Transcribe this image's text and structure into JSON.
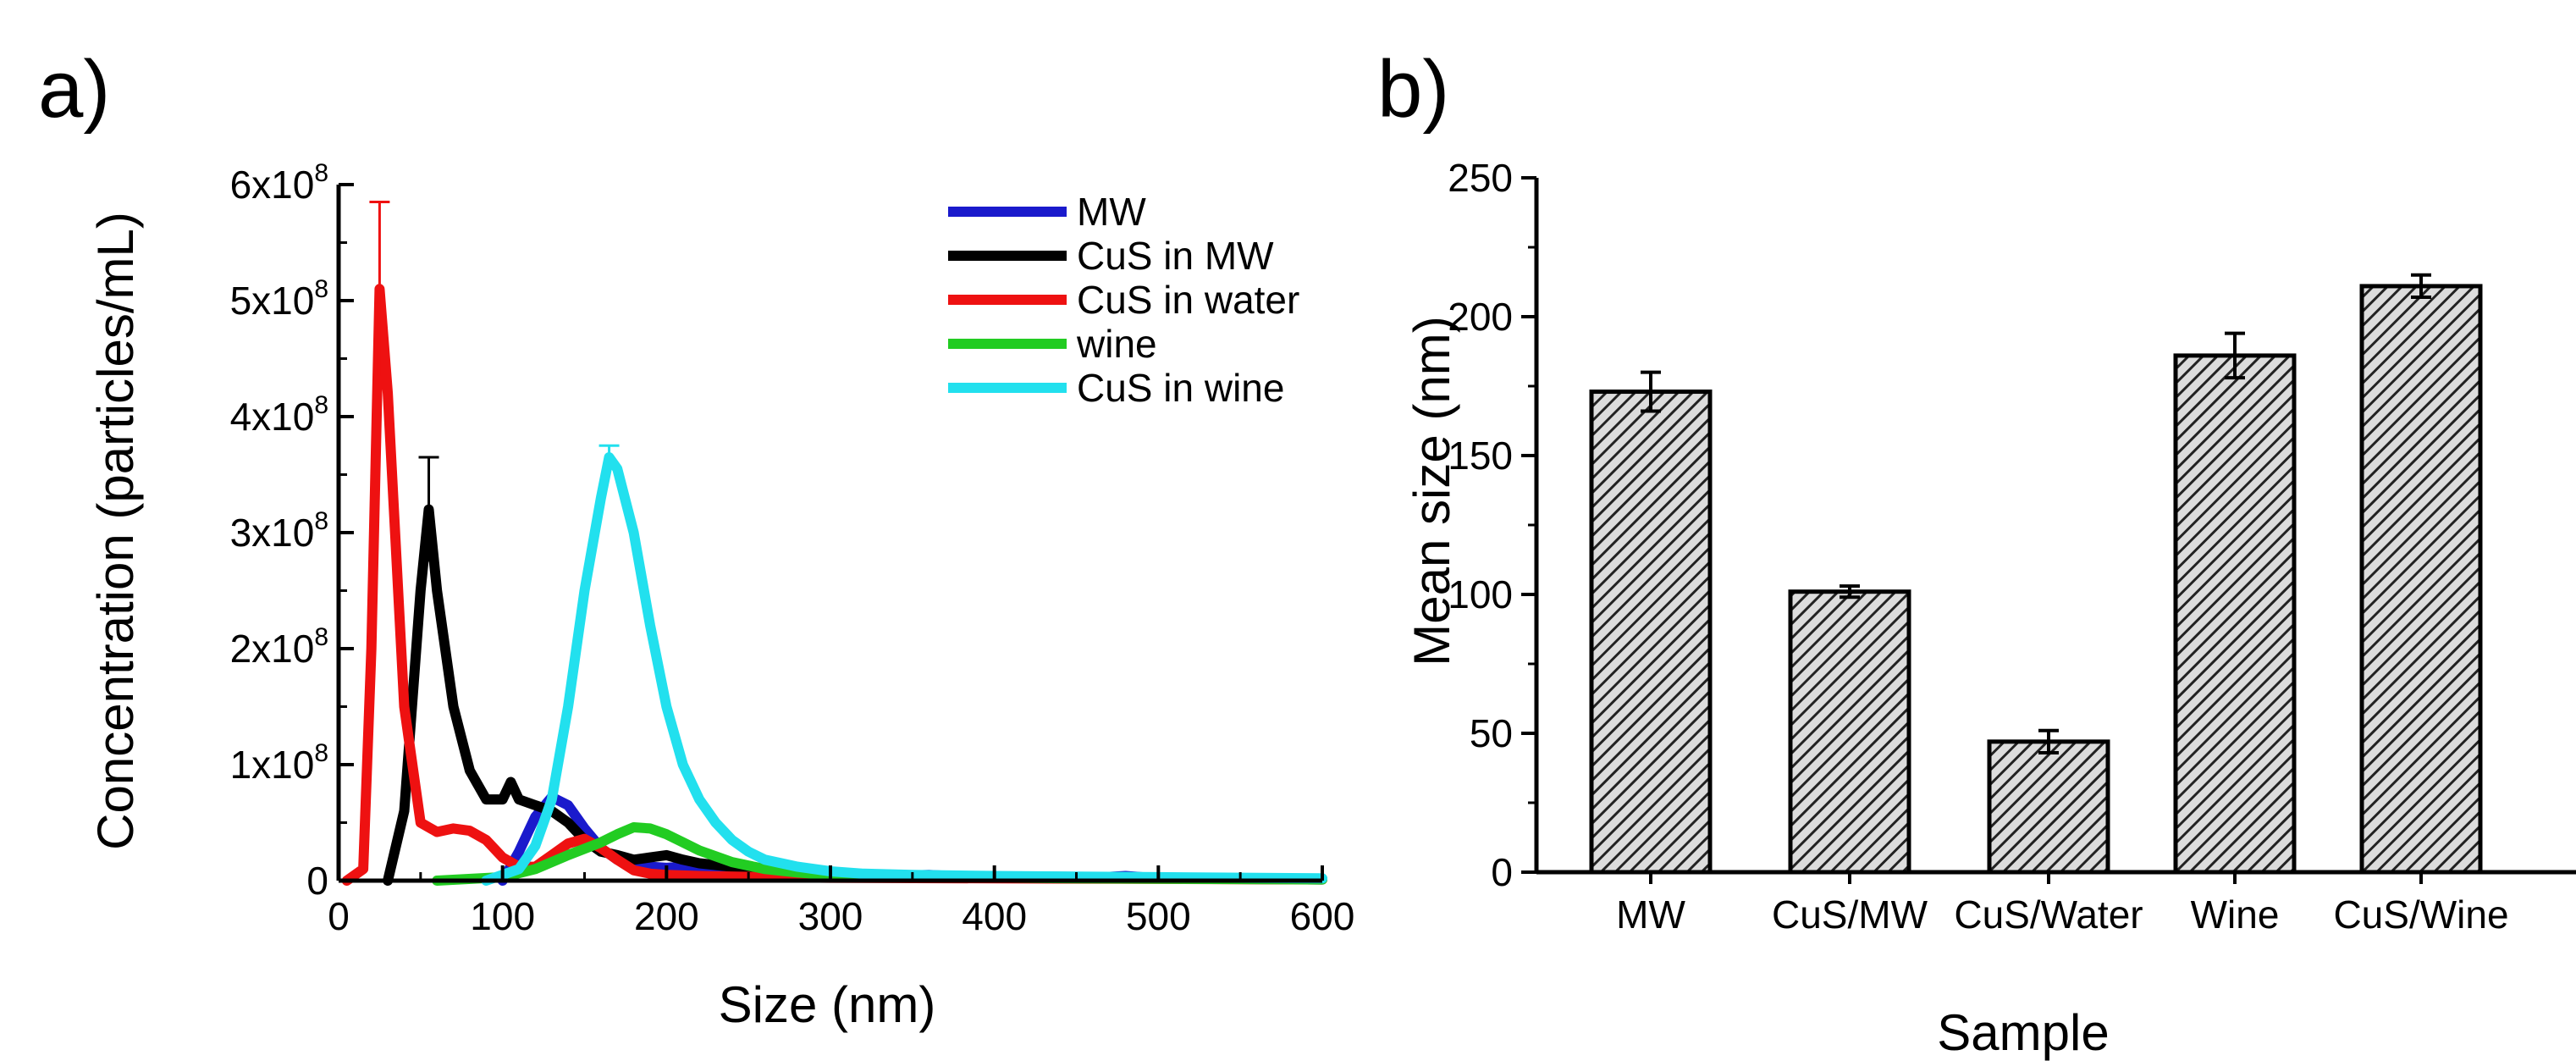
{
  "chart_data": [
    {
      "panel_label": "a)",
      "type": "line",
      "xlabel": "Size (nm)",
      "ylabel": "Concentration (particles/mL)",
      "xlim": [
        0,
        600
      ],
      "ylim": [
        0,
        600000000
      ],
      "x_ticks": [
        "0",
        "100",
        "200",
        "300",
        "400",
        "500",
        "600"
      ],
      "y_ticks": [
        {
          "value": 0,
          "base": "0",
          "exp": ""
        },
        {
          "value": 100000000,
          "base": "1x10",
          "exp": "8"
        },
        {
          "value": 200000000,
          "base": "2x10",
          "exp": "8"
        },
        {
          "value": 300000000,
          "base": "3x10",
          "exp": "8"
        },
        {
          "value": 400000000,
          "base": "4x10",
          "exp": "8"
        },
        {
          "value": 500000000,
          "base": "5x10",
          "exp": "8"
        },
        {
          "value": 600000000,
          "base": "6x10",
          "exp": "8"
        }
      ],
      "legend_position": "top-right",
      "grid": false,
      "series": [
        {
          "name": "MW",
          "color": "#1a1acc",
          "points": [
            [
              100,
              0
            ],
            [
              110,
              25000000
            ],
            [
              120,
              55000000
            ],
            [
              130,
              72000000
            ],
            [
              140,
              65000000
            ],
            [
              150,
              45000000
            ],
            [
              160,
              28000000
            ],
            [
              170,
              18000000
            ],
            [
              180,
              14000000
            ],
            [
              190,
              12000000
            ],
            [
              200,
              11000000
            ],
            [
              210,
              12000000
            ],
            [
              220,
              10000000
            ],
            [
              240,
              8000000
            ],
            [
              260,
              6000000
            ],
            [
              280,
              5000000
            ],
            [
              300,
              4000000
            ],
            [
              340,
              4000000
            ],
            [
              360,
              5000000
            ],
            [
              380,
              3500000
            ],
            [
              420,
              3000000
            ],
            [
              460,
              2500000
            ],
            [
              480,
              4000000
            ],
            [
              500,
              2000000
            ],
            [
              540,
              1500000
            ],
            [
              600,
              1000000
            ]
          ]
        },
        {
          "name": "CuS in MW",
          "color": "#000000",
          "points": [
            [
              30,
              0
            ],
            [
              40,
              60000000
            ],
            [
              50,
              250000000
            ],
            [
              55,
              320000000
            ],
            [
              60,
              250000000
            ],
            [
              70,
              150000000
            ],
            [
              80,
              95000000
            ],
            [
              90,
              70000000
            ],
            [
              100,
              70000000
            ],
            [
              105,
              85000000
            ],
            [
              110,
              70000000
            ],
            [
              120,
              65000000
            ],
            [
              130,
              60000000
            ],
            [
              140,
              50000000
            ],
            [
              150,
              35000000
            ],
            [
              160,
              25000000
            ],
            [
              170,
              22000000
            ],
            [
              180,
              18000000
            ],
            [
              190,
              20000000
            ],
            [
              200,
              22000000
            ],
            [
              210,
              18000000
            ],
            [
              220,
              15000000
            ],
            [
              240,
              12000000
            ],
            [
              260,
              9000000
            ],
            [
              280,
              7000000
            ],
            [
              300,
              6000000
            ],
            [
              340,
              5000000
            ],
            [
              380,
              4000000
            ],
            [
              420,
              3500000
            ],
            [
              480,
              3000000
            ],
            [
              540,
              2000000
            ],
            [
              600,
              1500000
            ]
          ]
        },
        {
          "name": "CuS in water",
          "color": "#ee1111",
          "points": [
            [
              5,
              0
            ],
            [
              15,
              10000000
            ],
            [
              20,
              200000000
            ],
            [
              25,
              510000000
            ],
            [
              30,
              420000000
            ],
            [
              40,
              150000000
            ],
            [
              50,
              50000000
            ],
            [
              60,
              42000000
            ],
            [
              70,
              45000000
            ],
            [
              80,
              43000000
            ],
            [
              90,
              35000000
            ],
            [
              100,
              20000000
            ],
            [
              110,
              12000000
            ],
            [
              120,
              12000000
            ],
            [
              130,
              22000000
            ],
            [
              140,
              32000000
            ],
            [
              150,
              36000000
            ],
            [
              160,
              28000000
            ],
            [
              170,
              18000000
            ],
            [
              180,
              9000000
            ],
            [
              190,
              6000000
            ],
            [
              200,
              5000000
            ],
            [
              220,
              4000000
            ],
            [
              260,
              3000000
            ],
            [
              300,
              2500000
            ],
            [
              400,
              2000000
            ],
            [
              500,
              1500000
            ],
            [
              600,
              1000000
            ]
          ]
        },
        {
          "name": "wine",
          "color": "#22cc22",
          "points": [
            [
              60,
              0
            ],
            [
              100,
              3000000
            ],
            [
              120,
              10000000
            ],
            [
              140,
              22000000
            ],
            [
              160,
              33000000
            ],
            [
              170,
              40000000
            ],
            [
              180,
              46000000
            ],
            [
              190,
              45000000
            ],
            [
              200,
              40000000
            ],
            [
              210,
              33000000
            ],
            [
              220,
              26000000
            ],
            [
              240,
              16000000
            ],
            [
              260,
              10000000
            ],
            [
              280,
              7000000
            ],
            [
              300,
              5000000
            ],
            [
              340,
              4000000
            ],
            [
              380,
              3000000
            ],
            [
              450,
              2000000
            ],
            [
              600,
              1000000
            ]
          ]
        },
        {
          "name": "CuS in wine",
          "color": "#22e0ee",
          "points": [
            [
              90,
              0
            ],
            [
              110,
              10000000
            ],
            [
              120,
              30000000
            ],
            [
              130,
              70000000
            ],
            [
              140,
              150000000
            ],
            [
              150,
              250000000
            ],
            [
              160,
              330000000
            ],
            [
              165,
              365000000
            ],
            [
              170,
              355000000
            ],
            [
              180,
              300000000
            ],
            [
              190,
              220000000
            ],
            [
              200,
              150000000
            ],
            [
              210,
              100000000
            ],
            [
              220,
              70000000
            ],
            [
              230,
              50000000
            ],
            [
              240,
              35000000
            ],
            [
              250,
              25000000
            ],
            [
              260,
              18000000
            ],
            [
              280,
              12000000
            ],
            [
              300,
              8000000
            ],
            [
              320,
              6000000
            ],
            [
              350,
              5000000
            ],
            [
              400,
              4000000
            ],
            [
              450,
              3500000
            ],
            [
              500,
              3000000
            ],
            [
              600,
              2000000
            ]
          ]
        }
      ],
      "error_bars": [
        {
          "series": "CuS in water",
          "x": 25,
          "y": 510000000,
          "err": 75000000
        },
        {
          "series": "CuS in MW",
          "x": 55,
          "y": 320000000,
          "err": 45000000
        },
        {
          "series": "CuS in wine",
          "x": 165,
          "y": 365000000,
          "err": 10000000
        }
      ]
    },
    {
      "panel_label": "b)",
      "type": "bar",
      "xlabel": "Sample",
      "ylabel": "Mean size (nm)",
      "ylim": [
        0,
        250
      ],
      "y_ticks": [
        "0",
        "50",
        "100",
        "150",
        "200",
        "250"
      ],
      "categories": [
        "MW",
        "CuS/MW",
        "CuS/Water",
        "Wine",
        "CuS/Wine"
      ],
      "values": [
        173,
        101,
        47,
        186,
        211
      ],
      "errors": [
        7,
        2,
        4,
        8,
        4
      ],
      "bar_fill": "hatched",
      "bar_color": "#333333"
    }
  ]
}
